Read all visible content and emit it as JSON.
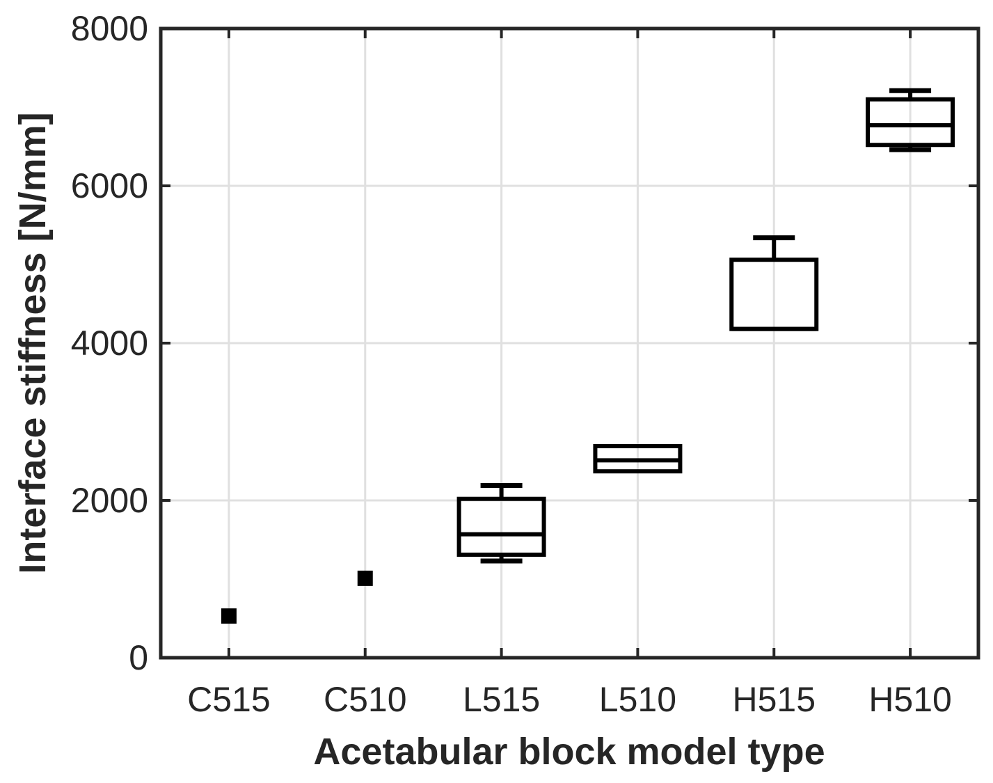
{
  "chart_data": {
    "type": "box",
    "title": "",
    "xlabel": "Acetabular block model type",
    "ylabel": "Interface stiffness [N/mm]",
    "categories": [
      "C515",
      "C510",
      "L515",
      "L510",
      "H515",
      "H510"
    ],
    "ylim": [
      0,
      8000
    ],
    "yticks": [
      0,
      2000,
      4000,
      6000,
      8000
    ],
    "grid": true,
    "legend_position": "none",
    "series": [
      {
        "category": "C515",
        "kind": "point",
        "value": 530
      },
      {
        "category": "C510",
        "kind": "point",
        "value": 1010
      },
      {
        "category": "L515",
        "kind": "box",
        "whisker_low": 1230,
        "q1": 1310,
        "median": 1570,
        "q3": 2020,
        "whisker_high": 2190
      },
      {
        "category": "L510",
        "kind": "box",
        "whisker_low": 2370,
        "q1": 2370,
        "median": 2510,
        "q3": 2690,
        "whisker_high": 2690
      },
      {
        "category": "H515",
        "kind": "box",
        "whisker_low": 4180,
        "q1": 4180,
        "median": 4180,
        "q3": 5060,
        "whisker_high": 5340
      },
      {
        "category": "H510",
        "kind": "box",
        "whisker_low": 6460,
        "q1": 6520,
        "median": 6770,
        "q3": 7100,
        "whisker_high": 7210
      }
    ]
  },
  "colors": {
    "background": "#ffffff",
    "axis": "#262626",
    "grid": "#e0e0e0",
    "box_stroke": "#000000",
    "marker_fill": "#000000",
    "tick_label": "#262626",
    "axis_label": "#262626"
  }
}
